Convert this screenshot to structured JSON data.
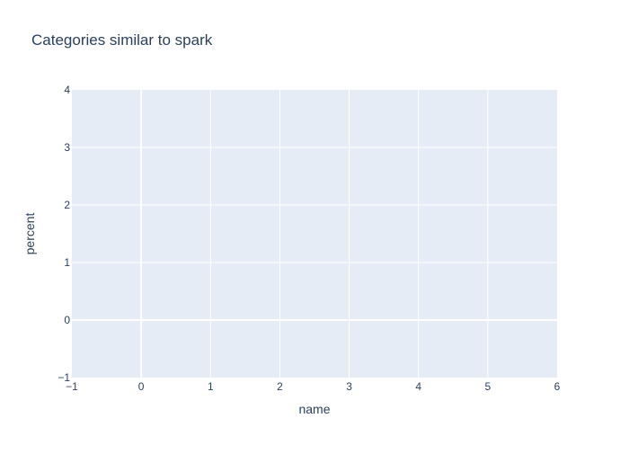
{
  "chart_data": {
    "type": "scatter",
    "title": "Categories similar to spark",
    "xlabel": "name",
    "ylabel": "percent",
    "xlim": [
      -1,
      6
    ],
    "ylim": [
      -1,
      4
    ],
    "x_ticks": [
      "−1",
      "0",
      "1",
      "2",
      "3",
      "4",
      "5",
      "6"
    ],
    "y_ticks": [
      "−1",
      "0",
      "1",
      "2",
      "3",
      "4"
    ],
    "grid": true,
    "series": [],
    "colors": {
      "plot_background": "#e5ecf6",
      "gridline": "#ffffff",
      "text": "#2a3f5f",
      "page_background": "#ffffff"
    }
  }
}
